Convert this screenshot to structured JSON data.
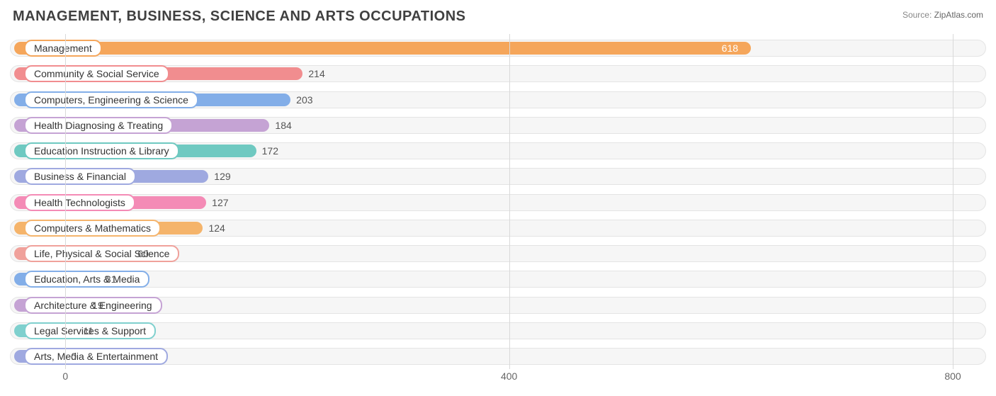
{
  "title": "MANAGEMENT, BUSINESS, SCIENCE AND ARTS OCCUPATIONS",
  "source_label": "Source:",
  "source_site": "ZipAtlas.com",
  "chart": {
    "type": "bar-horizontal",
    "xmin": -50,
    "xmax": 830,
    "grid_color": "#d9d9d9",
    "track_bg": "#f6f6f6",
    "track_border": "#e4e4e4",
    "title_color": "#404040",
    "label_fontsize": 14,
    "ticks": [
      {
        "value": 0,
        "label": "0"
      },
      {
        "value": 400,
        "label": "400"
      },
      {
        "value": 800,
        "label": "800"
      }
    ],
    "bars": [
      {
        "label": "Management",
        "value": 618,
        "color": "#f5a65b",
        "value_inside": true
      },
      {
        "label": "Community & Social Service",
        "value": 214,
        "color": "#f18d8f",
        "value_inside": false
      },
      {
        "label": "Computers, Engineering & Science",
        "value": 203,
        "color": "#83aee8",
        "value_inside": false
      },
      {
        "label": "Health Diagnosing & Treating",
        "value": 184,
        "color": "#c5a3d4",
        "value_inside": false
      },
      {
        "label": "Education Instruction & Library",
        "value": 172,
        "color": "#6fc9c1",
        "value_inside": false
      },
      {
        "label": "Business & Financial",
        "value": 129,
        "color": "#9fa9e0",
        "value_inside": false
      },
      {
        "label": "Health Technologists",
        "value": 127,
        "color": "#f48bb6",
        "value_inside": false
      },
      {
        "label": "Computers & Mathematics",
        "value": 124,
        "color": "#f5b46b",
        "value_inside": false
      },
      {
        "label": "Life, Physical & Social Science",
        "value": 60,
        "color": "#f0a19b",
        "value_inside": false
      },
      {
        "label": "Education, Arts & Media",
        "value": 31,
        "color": "#83aee8",
        "value_inside": false
      },
      {
        "label": "Architecture & Engineering",
        "value": 19,
        "color": "#c5a3d4",
        "value_inside": false
      },
      {
        "label": "Legal Services & Support",
        "value": 11,
        "color": "#7fd0ce",
        "value_inside": false
      },
      {
        "label": "Arts, Media & Entertainment",
        "value": 0,
        "color": "#9fa9e0",
        "value_inside": false
      }
    ]
  }
}
